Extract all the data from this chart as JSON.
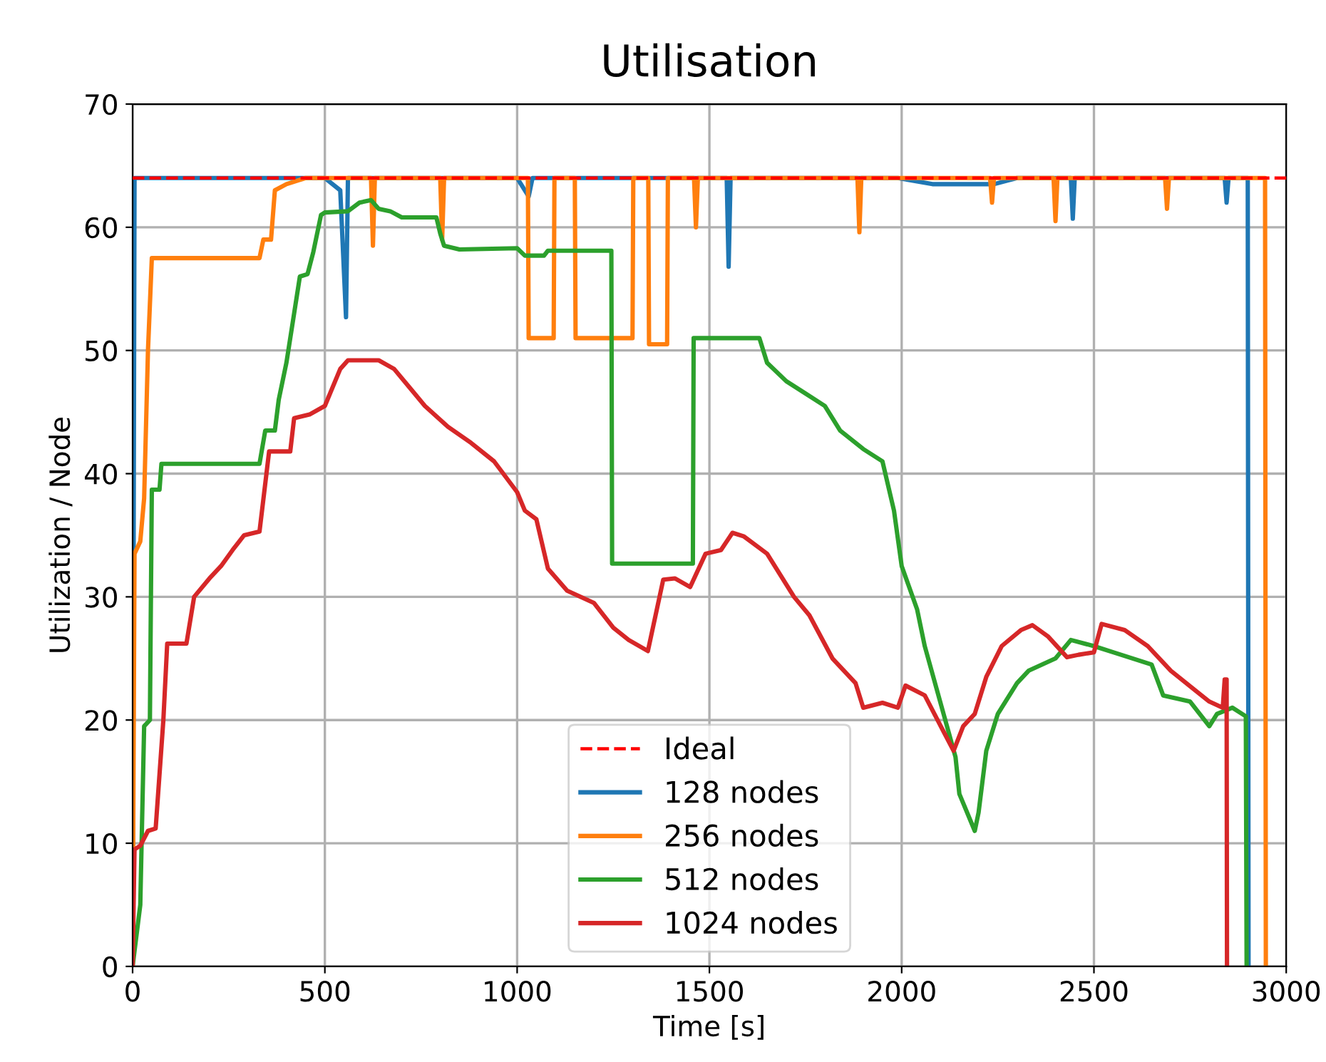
{
  "chart_data": {
    "type": "line",
    "title": "Utilisation",
    "xlabel": "Time [s]",
    "ylabel": "Utilization / Node",
    "xlim": [
      0,
      3000
    ],
    "xticks": [
      0,
      500,
      1000,
      1500,
      2000,
      2500,
      3000
    ],
    "ylim": [
      0,
      70
    ],
    "yticks": [
      0,
      10,
      20,
      30,
      40,
      50,
      60,
      70
    ],
    "grid": true,
    "legend": "bottom",
    "series": [
      {
        "name": "Ideal",
        "color": "#ff0000",
        "line_style": "dashed",
        "x": [
          0,
          3000
        ],
        "values": [
          64,
          64
        ]
      },
      {
        "name": "128 nodes",
        "color": "#1f77b4",
        "x": [
          0,
          5,
          500,
          540,
          555,
          560,
          1000,
          1030,
          1040,
          1545,
          1550,
          1555,
          1990,
          2080,
          2240,
          2300,
          2440,
          2445,
          2450,
          2840,
          2845,
          2850,
          2900,
          2902
        ],
        "values": [
          0,
          64,
          64,
          63,
          52.7,
          64,
          64,
          62.5,
          64,
          64,
          56.8,
          64,
          64,
          63.5,
          63.5,
          64,
          64,
          60.7,
          64,
          64,
          62,
          64,
          64,
          0
        ]
      },
      {
        "name": "256 nodes",
        "color": "#ff7f0e",
        "x": [
          0,
          5,
          20,
          30,
          40,
          50,
          330,
          340,
          360,
          370,
          400,
          450,
          620,
          625,
          630,
          800,
          805,
          810,
          1028,
          1030,
          1095,
          1097,
          1150,
          1152,
          1300,
          1302,
          1341,
          1343,
          1390,
          1392,
          1460,
          1465,
          1470,
          1885,
          1890,
          1895,
          2230,
          2235,
          2240,
          2395,
          2400,
          2405,
          2685,
          2690,
          2695,
          2945,
          2947
        ],
        "values": [
          0,
          33.5,
          34.5,
          38,
          50,
          57.5,
          57.5,
          59,
          59,
          63,
          63.5,
          64,
          64,
          58.5,
          64,
          64,
          59,
          64,
          64,
          51,
          51,
          64,
          64,
          51,
          51,
          64,
          64,
          50.5,
          50.5,
          64,
          64,
          60,
          64,
          64,
          59.6,
          64,
          64,
          62,
          64,
          64,
          60.5,
          64,
          64,
          61.5,
          64,
          64,
          0
        ]
      },
      {
        "name": "512 nodes",
        "color": "#2ca02c",
        "x": [
          0,
          20,
          30,
          45,
          50,
          70,
          75,
          330,
          345,
          370,
          380,
          400,
          420,
          435,
          455,
          470,
          490,
          500,
          560,
          590,
          620,
          640,
          670,
          700,
          790,
          800,
          810,
          850,
          1000,
          1020,
          1070,
          1080,
          1245,
          1247,
          1457,
          1459,
          1630,
          1650,
          1700,
          1750,
          1800,
          1840,
          1900,
          1950,
          1980,
          2000,
          2040,
          2060,
          2100,
          2140,
          2150,
          2190,
          2200,
          2220,
          2250,
          2300,
          2330,
          2400,
          2440,
          2500,
          2550,
          2650,
          2680,
          2750,
          2800,
          2820,
          2860,
          2895,
          2897
        ],
        "values": [
          0,
          5,
          19.5,
          20,
          38.7,
          38.7,
          40.8,
          40.8,
          43.5,
          43.5,
          46,
          49,
          53,
          56,
          56.2,
          58,
          61,
          61.2,
          61.3,
          62,
          62.2,
          61.5,
          61.3,
          60.8,
          60.8,
          59.5,
          58.5,
          58.2,
          58.3,
          57.7,
          57.7,
          58.1,
          58.1,
          32.7,
          32.7,
          51,
          51,
          49,
          47.5,
          46.5,
          45.5,
          43.5,
          42,
          41,
          37,
          32.5,
          29,
          26,
          21.5,
          17,
          14,
          11,
          12.5,
          17.5,
          20.5,
          23,
          24,
          25,
          26.5,
          26,
          25.5,
          24.5,
          22,
          21.5,
          19.5,
          20.5,
          21,
          20.3,
          0
        ]
      },
      {
        "name": "1024 nodes",
        "color": "#d62728",
        "x": [
          0,
          5,
          20,
          40,
          60,
          80,
          90,
          140,
          160,
          200,
          230,
          260,
          290,
          330,
          355,
          410,
          420,
          460,
          500,
          540,
          560,
          640,
          680,
          720,
          760,
          820,
          880,
          940,
          1000,
          1020,
          1050,
          1080,
          1130,
          1200,
          1250,
          1290,
          1340,
          1380,
          1410,
          1450,
          1490,
          1530,
          1560,
          1590,
          1650,
          1720,
          1760,
          1820,
          1880,
          1900,
          1950,
          1990,
          2010,
          2060,
          2110,
          2135,
          2160,
          2190,
          2220,
          2260,
          2310,
          2340,
          2380,
          2430,
          2460,
          2500,
          2520,
          2580,
          2640,
          2700,
          2760,
          2800,
          2835,
          2840,
          2845,
          2846
        ],
        "values": [
          0,
          9.5,
          9.8,
          11,
          11.2,
          20,
          26.2,
          26.2,
          30,
          31.5,
          32.5,
          33.8,
          35,
          35.3,
          41.8,
          41.8,
          44.5,
          44.8,
          45.5,
          48.5,
          49.2,
          49.2,
          48.5,
          47,
          45.5,
          43.8,
          42.5,
          41,
          38.5,
          37,
          36.3,
          32.3,
          30.5,
          29.5,
          27.5,
          26.5,
          25.6,
          31.4,
          31.5,
          30.8,
          33.5,
          33.8,
          35.2,
          34.9,
          33.5,
          30,
          28.5,
          25,
          23,
          21,
          21.4,
          21,
          22.8,
          22,
          19,
          17.5,
          19.5,
          20.5,
          23.5,
          26,
          27.3,
          27.7,
          26.8,
          25.1,
          25.3,
          25.5,
          27.8,
          27.3,
          26,
          24,
          22.5,
          21.5,
          21,
          23.3,
          23.3,
          0
        ]
      }
    ]
  }
}
